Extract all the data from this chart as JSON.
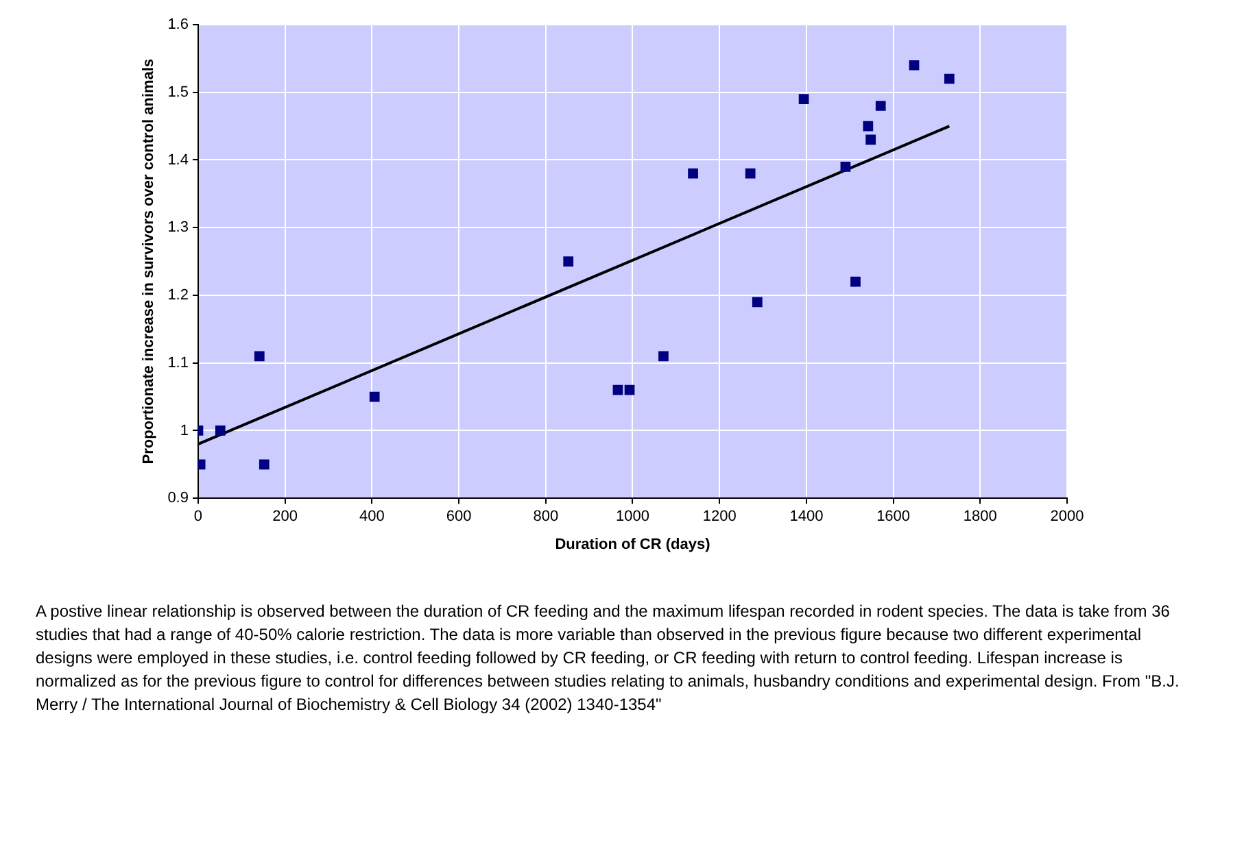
{
  "chart_data": {
    "type": "scatter",
    "xlabel": "Duration of CR (days)",
    "ylabel": "Proportionate increase in survivors over control animals",
    "xlim": [
      0,
      2000
    ],
    "xticks": [
      0,
      200,
      400,
      600,
      800,
      1000,
      1200,
      1400,
      1600,
      1800,
      2000
    ],
    "ylim": [
      0.9,
      1.6
    ],
    "yticks": [
      0.9,
      1,
      1.1,
      1.2,
      1.3,
      1.4,
      1.5,
      1.6
    ],
    "grid": true,
    "legend": false,
    "marker": "square",
    "series": [
      {
        "type": "scatter",
        "color": "#000080",
        "x": [
          0,
          5,
          51,
          141,
          152,
          406,
          852,
          966,
          993,
          1071,
          1139,
          1271,
          1287,
          1394,
          1490,
          1513,
          1542,
          1548,
          1571,
          1648,
          1729
        ],
        "values": [
          1.0,
          0.95,
          1.0,
          1.11,
          0.95,
          1.05,
          1.25,
          1.06,
          1.06,
          1.11,
          1.38,
          1.38,
          1.19,
          1.49,
          1.39,
          1.22,
          1.45,
          1.43,
          1.48,
          1.54,
          1.52
        ]
      },
      {
        "type": "line",
        "color": "#000000",
        "x": [
          0,
          1729
        ],
        "values": [
          0.98,
          1.45
        ],
        "marker": "none",
        "line_style": "solid"
      }
    ],
    "annotations": [
      "A postive linear relationship is observed between the duration of CR feeding and the maximum lifespan recorded in rodent species. The data is take from 36 studies that had a range of 40-50% calorie restriction. The data is more variable than observed in the previous figure because two different experimental designs were employed in these studies, i.e. control feeding followed by CR feeding, or CR feeding with return to control feeding. Lifespan increase is normalized as for the previous figure to control for differences between studies relating to animals, husbandry conditions and experimental design. From \"B.J. Merry / The International Journal of Biochemistry & Cell Biology 34 (2002) 1340-1354\""
    ]
  }
}
